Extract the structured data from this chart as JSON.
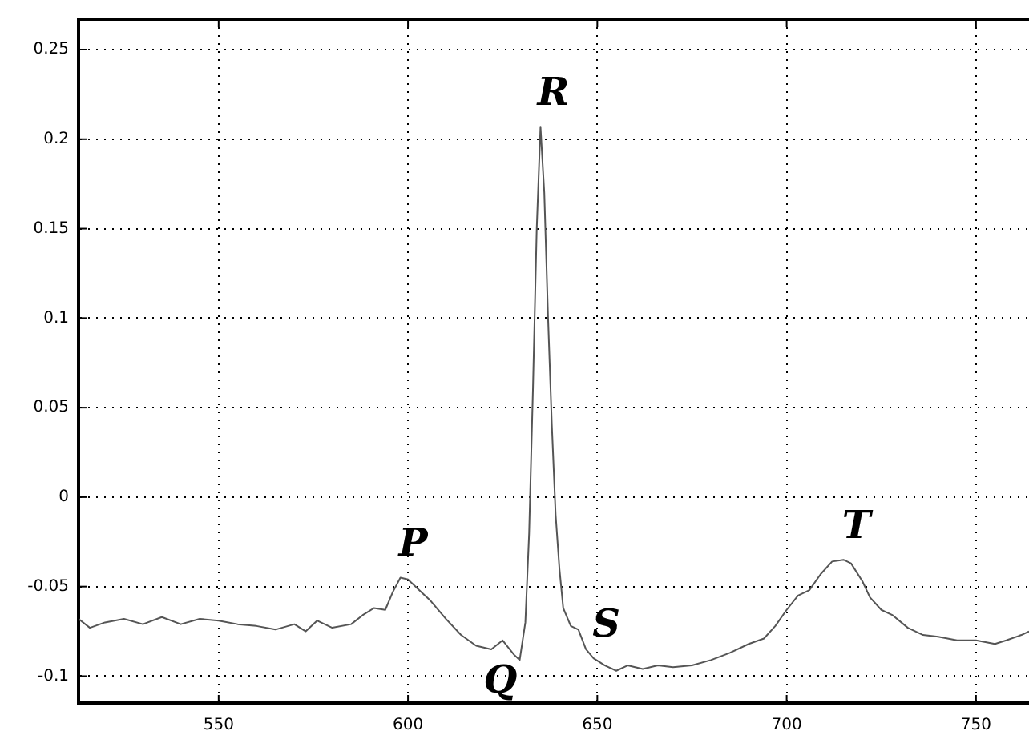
{
  "chart_data": {
    "type": "line",
    "x": [
      513,
      516,
      520,
      525,
      530,
      535,
      540,
      545,
      550,
      555,
      560,
      565,
      570,
      573,
      576,
      580,
      585,
      588,
      591,
      594,
      596,
      598,
      600,
      603,
      606,
      610,
      614,
      618,
      622,
      625,
      628,
      629.5,
      631,
      632,
      633,
      634,
      635,
      636,
      637,
      638,
      639,
      640,
      641,
      643,
      645,
      647,
      649,
      652,
      655,
      658,
      662,
      666,
      670,
      675,
      680,
      685,
      690,
      694,
      697,
      700,
      703,
      706,
      709,
      712,
      715,
      717,
      720,
      722,
      725,
      728,
      732,
      736,
      740,
      745,
      750,
      755,
      758,
      762,
      764
    ],
    "series": [
      {
        "color": "#555555",
        "values": [
          -0.068,
          -0.073,
          -0.07,
          -0.068,
          -0.071,
          -0.067,
          -0.071,
          -0.068,
          -0.069,
          -0.071,
          -0.072,
          -0.074,
          -0.071,
          -0.075,
          -0.069,
          -0.073,
          -0.071,
          -0.066,
          -0.062,
          -0.063,
          -0.053,
          -0.045,
          -0.046,
          -0.052,
          -0.058,
          -0.068,
          -0.077,
          -0.083,
          -0.085,
          -0.08,
          -0.088,
          -0.091,
          -0.07,
          -0.02,
          0.06,
          0.15,
          0.207,
          0.17,
          0.1,
          0.04,
          -0.01,
          -0.04,
          -0.062,
          -0.072,
          -0.074,
          -0.085,
          -0.09,
          -0.094,
          -0.097,
          -0.094,
          -0.096,
          -0.094,
          -0.095,
          -0.094,
          -0.091,
          -0.087,
          -0.082,
          -0.079,
          -0.072,
          -0.063,
          -0.055,
          -0.052,
          -0.043,
          -0.036,
          -0.035,
          -0.037,
          -0.047,
          -0.056,
          -0.063,
          -0.066,
          -0.073,
          -0.077,
          -0.078,
          -0.08,
          -0.08,
          -0.082,
          -0.08,
          -0.077,
          -0.075
        ]
      }
    ],
    "xlim": [
      513,
      764
    ],
    "xticks": [
      550,
      600,
      650,
      700,
      750
    ],
    "ylim": [
      -0.115,
      0.267
    ],
    "yticks": [
      -0.1,
      -0.05,
      0,
      0.05,
      0.1,
      0.15,
      0.2,
      0.25
    ],
    "grid": true,
    "marker": "none",
    "line_style": "solid",
    "legend": false,
    "annotations": [
      {
        "text": "P",
        "x": 598,
        "y": -0.045
      },
      {
        "text": "Q",
        "x": 629.5,
        "y": -0.091
      },
      {
        "text": "R",
        "x": 635,
        "y": 0.207
      },
      {
        "text": "S",
        "x": 649,
        "y": -0.09
      },
      {
        "text": "T",
        "x": 715,
        "y": -0.035
      }
    ]
  }
}
